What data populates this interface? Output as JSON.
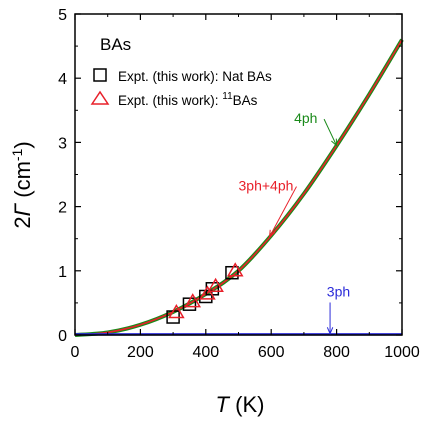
{
  "chart_data": {
    "type": "line",
    "xlabel_symbol": "T",
    "xlabel_unit": " (K)",
    "ylabel_prefix": "2",
    "ylabel_symbol": "Γ",
    "ylabel_unit_open": " (cm",
    "ylabel_unit_exp": "-1",
    "ylabel_unit_close": ")",
    "xlim": [
      0,
      1000
    ],
    "ylim": [
      0,
      5
    ],
    "xticks": [
      0,
      200,
      400,
      600,
      800,
      1000
    ],
    "yticks": [
      0,
      1,
      2,
      3,
      4,
      5
    ],
    "grid": false,
    "material_label": "BAs",
    "legend": {
      "placement": "top-left",
      "entries": [
        {
          "marker": "square",
          "color": "#000000",
          "prefix": "Expt. (this work): Nat BAs",
          "sup": "",
          "suffix": ""
        },
        {
          "marker": "triangle",
          "color": "#e8202a",
          "prefix": "Expt. (this work): ",
          "sup": "11",
          "suffix": "BAs"
        }
      ]
    },
    "series": [
      {
        "name": "4ph",
        "kind": "curve",
        "color": "#1a8a1a",
        "x": [
          0,
          100,
          200,
          300,
          400,
          500,
          600,
          700,
          800,
          900,
          1000
        ],
        "y": [
          0.0,
          0.04,
          0.16,
          0.36,
          0.64,
          1.0,
          1.55,
          2.2,
          2.95,
          3.75,
          4.6
        ]
      },
      {
        "name": "3ph+4ph",
        "kind": "curve",
        "color": "#e8202a",
        "x": [
          0,
          100,
          200,
          300,
          400,
          500,
          600,
          700,
          800,
          900,
          1000
        ],
        "y": [
          0.0,
          0.04,
          0.16,
          0.36,
          0.64,
          1.0,
          1.55,
          2.2,
          2.95,
          3.75,
          4.6
        ]
      },
      {
        "name": "3ph",
        "kind": "curve",
        "color": "#2b2bd9",
        "x": [
          0,
          100,
          200,
          300,
          400,
          500,
          600,
          700,
          800,
          900,
          1000
        ],
        "y": [
          0.01,
          0.01,
          0.01,
          0.01,
          0.01,
          0.01,
          0.01,
          0.01,
          0.01,
          0.01,
          0.01
        ]
      },
      {
        "name": "Expt. (this work): Nat BAs",
        "kind": "markers",
        "marker": "square",
        "color": "#000000",
        "x": [
          300,
          350,
          400,
          420,
          480
        ],
        "y": [
          0.28,
          0.48,
          0.6,
          0.72,
          0.97
        ]
      },
      {
        "name": "Expt. (this work): 11BAs",
        "kind": "markers",
        "marker": "triangle",
        "color": "#e8202a",
        "x": [
          310,
          360,
          405,
          430,
          490
        ],
        "y": [
          0.35,
          0.52,
          0.64,
          0.76,
          1.0
        ]
      }
    ],
    "annotations": [
      {
        "text": "4ph",
        "color": "#1a8a1a",
        "text_x": 670,
        "text_y": 3.3,
        "target_x": 800,
        "target_y": 2.95
      },
      {
        "text": "3ph+4ph",
        "color": "#e8202a",
        "text_x": 500,
        "text_y": 2.25,
        "target_x": 595,
        "target_y": 1.53
      },
      {
        "text": "3ph",
        "color": "#2b2bd9",
        "text_x": 770,
        "text_y": 0.6,
        "target_x": 780,
        "target_y": 0.02
      }
    ]
  }
}
